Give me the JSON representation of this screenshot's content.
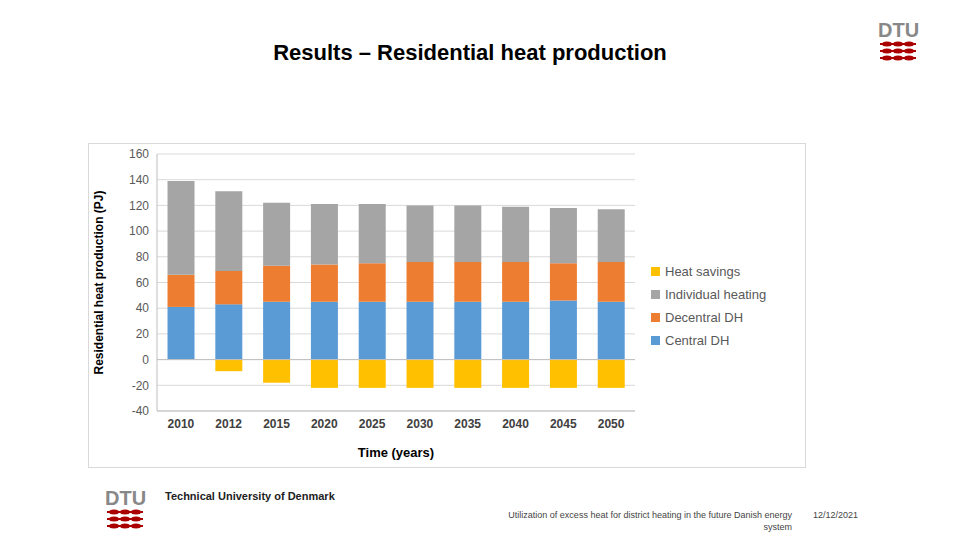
{
  "chart_data": {
    "type": "bar",
    "stacked": true,
    "grid": true,
    "legend": "right",
    "title": "Results – Residential heat production",
    "x_label": "Time (years)",
    "y_label": "Residential heat production (PJ)",
    "categories": [
      "2010",
      "2012",
      "2015",
      "2020",
      "2025",
      "2030",
      "2035",
      "2040",
      "2045",
      "2050"
    ],
    "series": [
      {
        "name": "Central DH",
        "color": "#5b9bd5",
        "values": [
          41,
          43,
          45,
          45,
          45,
          45,
          45,
          45,
          46,
          45
        ]
      },
      {
        "name": "Decentral DH",
        "color": "#ed7d31",
        "values": [
          25,
          26,
          28,
          29,
          30,
          31,
          31,
          31,
          29,
          31
        ]
      },
      {
        "name": "Individual heating",
        "color": "#a5a5a5",
        "values": [
          73,
          62,
          49,
          47,
          46,
          44,
          44,
          43,
          43,
          41
        ]
      },
      {
        "name": "Heat savings",
        "color": "#ffc000",
        "values": [
          0,
          -9,
          -18,
          -22,
          -22,
          -22,
          -22,
          -22,
          -22,
          -22
        ]
      }
    ],
    "ylim": [
      -40,
      160
    ],
    "yticks": [
      -40,
      -20,
      0,
      20,
      40,
      60,
      80,
      100,
      120,
      140,
      160
    ]
  },
  "page": {
    "logo": "DTU",
    "organization": "Technical University of Denmark",
    "footer": "Utilization of excess heat for district heating in the future Danish energy system",
    "date": "12/12/2021"
  }
}
